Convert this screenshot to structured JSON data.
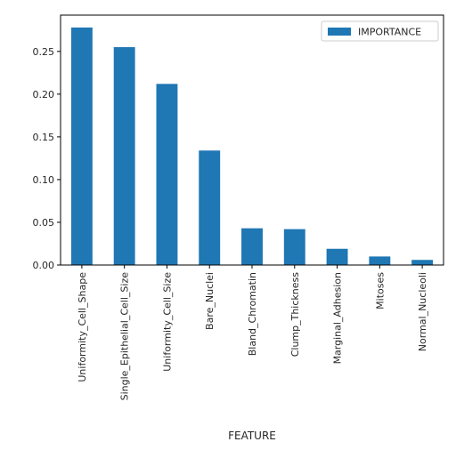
{
  "chart_data": {
    "type": "bar",
    "title": "",
    "xlabel": "FEATURE",
    "ylabel": "",
    "categories": [
      "Uniformity_Cell_Shape",
      "Single_Epithelial_Cell_Size",
      "Uniformity_Cell_Size",
      "Bare_Nuclei",
      "Bland_Chromatin",
      "Clump_Thickness",
      "Marginal_Adhesion",
      "Mitoses",
      "Normal_Nucleoli"
    ],
    "series": [
      {
        "name": "IMPORTANCE",
        "color": "#1f77b4",
        "values": [
          0.278,
          0.255,
          0.212,
          0.134,
          0.043,
          0.042,
          0.019,
          0.01,
          0.006
        ]
      }
    ],
    "ylim": [
      0,
      0.2925
    ],
    "yticks": [
      0.0,
      0.05,
      0.1,
      0.15,
      0.2,
      0.25
    ],
    "ytick_labels": [
      "0.00",
      "0.05",
      "0.10",
      "0.15",
      "0.20",
      "0.25"
    ],
    "grid": false,
    "legend_position": "top-right"
  }
}
